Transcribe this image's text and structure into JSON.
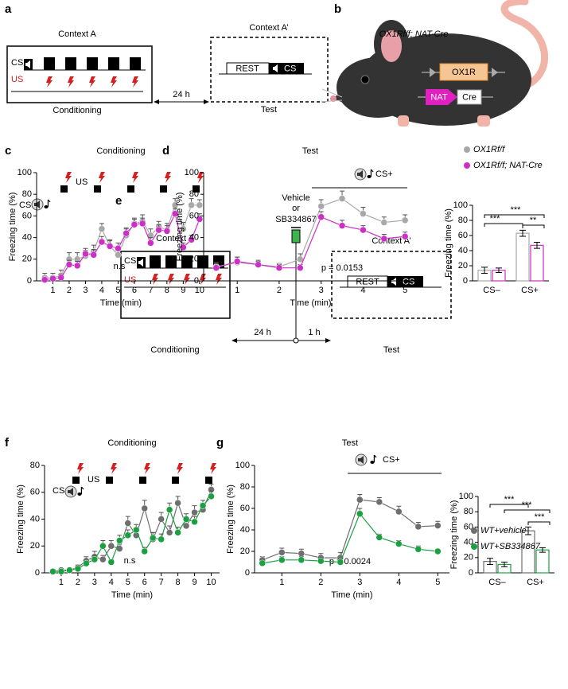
{
  "panel_labels": [
    "a",
    "b",
    "c",
    "d",
    "e",
    "f",
    "g"
  ],
  "diagram_a": {
    "context_a": "Context A",
    "cs": "CS",
    "us": "US",
    "conditioning": "Conditioning",
    "interval": "24 h",
    "context_a2": "Context A’",
    "rest": "REST",
    "cs_test": "CS",
    "test": "Test"
  },
  "diagram_b": {
    "genotype": "OX1Rf/f; NAT-Cre",
    "receptor": "OX1R",
    "promoter": "NAT",
    "recombinase": "Cre"
  },
  "diagram_e": {
    "drug_line1": "Vehicle",
    "drug_or": "or",
    "drug_line2": "SB334867",
    "context_a": "Context A",
    "cs": "CS",
    "us": "US",
    "conditioning": "Conditioning",
    "interval1": "24 h",
    "interval2": "1 h",
    "context_a2": "Context A’",
    "rest": "REST",
    "cs_test": "CS",
    "test": "Test"
  },
  "chart_data": [
    {
      "type": "line",
      "title": "Conditioning",
      "x_label": "Time (min)",
      "y_label": "Freezing time (%)",
      "x": [
        0.5,
        1,
        1.5,
        2,
        2.5,
        3,
        3.5,
        4,
        4.5,
        5,
        5.5,
        6,
        6.5,
        7,
        7.5,
        8,
        8.5,
        9,
        9.5,
        10
      ],
      "series": [
        {
          "color": "#a8a8a8",
          "values": [
            3,
            3,
            5,
            20,
            20,
            23,
            27,
            48,
            32,
            24,
            42,
            53,
            55,
            42,
            50,
            47,
            70,
            48,
            70,
            70
          ],
          "errors": [
            4,
            4,
            5,
            6,
            6,
            5,
            6,
            5,
            6,
            5,
            6,
            5,
            6,
            6,
            5,
            6,
            6,
            6,
            6,
            5
          ]
        },
        {
          "color": "#cc2fc6",
          "values": [
            1,
            2,
            3,
            15,
            14,
            25,
            24,
            36,
            32,
            30,
            44,
            52,
            53,
            35,
            47,
            46,
            62,
            31,
            38,
            57
          ],
          "errors": [
            2,
            2,
            3,
            4,
            4,
            5,
            5,
            5,
            5,
            5,
            5,
            5,
            5,
            5,
            5,
            5,
            5,
            4,
            4,
            5
          ]
        }
      ],
      "xlim": [
        0,
        10.35
      ],
      "xticks": [
        1,
        2,
        3,
        4,
        5,
        6,
        7,
        8,
        9,
        10
      ],
      "ylim": [
        0,
        100
      ],
      "yticks": [
        0,
        20,
        40,
        60,
        80,
        100
      ],
      "annotations": [
        "US",
        "CS",
        "n.s"
      ]
    },
    {
      "type": "line",
      "title": "Test",
      "x_label": "Time (min)",
      "y_label": "Freezing time (%)",
      "x": [
        0.5,
        1,
        1.5,
        2,
        2.5,
        3,
        3.5,
        4,
        4.5,
        5
      ],
      "series": [
        {
          "color": "#a8a8a8",
          "values": [
            13,
            17,
            15,
            13,
            20,
            69,
            76,
            62,
            54,
            56
          ],
          "errors": [
            4,
            5,
            3,
            3,
            5,
            6,
            7,
            6,
            5,
            5
          ]
        },
        {
          "color": "#cc2fc6",
          "values": [
            12,
            18,
            15,
            12,
            12,
            59,
            51,
            47,
            39,
            41
          ],
          "errors": [
            4,
            4,
            4,
            3,
            3,
            5,
            5,
            4,
            4,
            4
          ]
        }
      ],
      "xlim": [
        0.2,
        5.3
      ],
      "xticks": [
        1,
        2,
        3,
        4,
        5
      ],
      "ylim": [
        0,
        100
      ],
      "yticks": [
        0,
        20,
        40,
        60,
        80,
        100
      ],
      "annotations": [
        "CS+",
        "p = 0.0153"
      ]
    },
    {
      "type": "bar",
      "y_label": "Freezing time (%)",
      "categories": [
        "CS–",
        "CS+"
      ],
      "series": [
        {
          "name": "OX1Rf/f",
          "color": "#a8a8a8",
          "values": [
            14,
            63
          ],
          "errors": [
            4,
            4
          ]
        },
        {
          "name": "OX1Rf/f; NAT-Cre",
          "color": "#cc2fc6",
          "values": [
            14,
            47
          ],
          "errors": [
            3,
            4
          ]
        }
      ],
      "ylim": [
        0,
        100
      ],
      "yticks": [
        0,
        20,
        40,
        60,
        80,
        100
      ],
      "annotations": [
        "***",
        "***",
        "**"
      ]
    },
    {
      "type": "line",
      "title": "Conditioning",
      "x_label": "Time (min)",
      "y_label": "Freezing time (%)",
      "x": [
        0.5,
        1,
        1.5,
        2,
        2.5,
        3,
        3.5,
        4,
        4.5,
        5,
        5.5,
        6,
        6.5,
        7,
        7.5,
        8,
        8.5,
        9,
        9.5,
        10
      ],
      "series": [
        {
          "color": "#6e6e6e",
          "values": [
            1,
            2,
            2,
            4,
            9,
            12,
            10,
            20,
            18,
            37,
            28,
            48,
            25,
            40,
            30,
            52,
            35,
            45,
            47,
            62
          ],
          "errors": [
            1,
            1,
            1,
            2,
            3,
            4,
            3,
            4,
            4,
            5,
            5,
            6,
            5,
            5,
            5,
            5,
            5,
            5,
            5,
            4
          ]
        },
        {
          "color": "#1aa040",
          "values": [
            1,
            1,
            2,
            3,
            7,
            10,
            20,
            8,
            24,
            28,
            32,
            16,
            26,
            25,
            47,
            30,
            40,
            38,
            50,
            57
          ],
          "errors": [
            1,
            1,
            1,
            2,
            2,
            3,
            4,
            2,
            4,
            4,
            4,
            3,
            4,
            4,
            5,
            4,
            4,
            4,
            4,
            4
          ]
        }
      ],
      "xlim": [
        0,
        10.5
      ],
      "xticks": [
        1,
        2,
        3,
        4,
        5,
        6,
        7,
        8,
        9,
        10
      ],
      "ylim": [
        0,
        80
      ],
      "yticks": [
        0,
        20,
        40,
        60,
        80
      ],
      "annotations": [
        "US",
        "CS",
        "n.s"
      ]
    },
    {
      "type": "line",
      "title": "Test",
      "x_label": "Time (min)",
      "y_label": "Freezing time (%)",
      "x": [
        0.5,
        1,
        1.5,
        2,
        2.5,
        3,
        3.5,
        4,
        4.5,
        5
      ],
      "series": [
        {
          "color": "#6e6e6e",
          "values": [
            12,
            19,
            18,
            14,
            14,
            68,
            66,
            57,
            43,
            44
          ],
          "errors": [
            3,
            4,
            4,
            4,
            5,
            5,
            4,
            5,
            4,
            4
          ]
        },
        {
          "color": "#1aa040",
          "values": [
            9,
            12,
            12,
            11,
            10,
            55,
            33,
            27,
            22,
            20
          ],
          "errors": [
            3,
            3,
            3,
            3,
            3,
            5,
            3,
            3,
            3,
            2
          ]
        }
      ],
      "xlim": [
        0.3,
        5.3
      ],
      "xticks": [
        1,
        2,
        3,
        4,
        5
      ],
      "ylim": [
        0,
        100
      ],
      "yticks": [
        0,
        20,
        40,
        60,
        80,
        100
      ],
      "annotations": [
        "CS+",
        "p = 0.0024"
      ]
    },
    {
      "type": "bar",
      "y_label": "Freezing time (%)",
      "categories": [
        "CS–",
        "CS+"
      ],
      "series": [
        {
          "name": "WT+vehicle",
          "color": "#6e6e6e",
          "values": [
            15,
            55
          ],
          "errors": [
            4,
            5
          ]
        },
        {
          "name": "WT+SB334867",
          "color": "#1aa040",
          "values": [
            11,
            30
          ],
          "errors": [
            3,
            3
          ]
        }
      ],
      "ylim": [
        0,
        100
      ],
      "yticks": [
        0,
        20,
        40,
        60,
        80,
        100
      ],
      "annotations": [
        "***",
        "***",
        "***"
      ]
    }
  ]
}
